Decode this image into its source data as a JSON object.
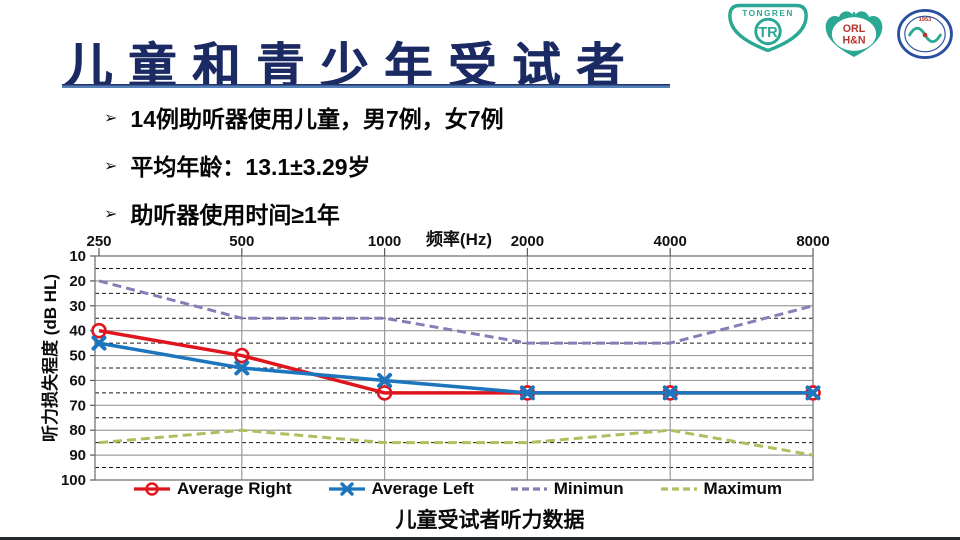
{
  "slide": {
    "title": "儿童和青少年受试者",
    "bullet_marker": "➢",
    "bullets": [
      "14例助听器使用儿童，男7例，女7例",
      "平均年龄：13.1±3.29岁",
      "助听器使用时间≥1年"
    ],
    "caption": "儿童受试者听力数据"
  },
  "logos": {
    "tongren_text": "TONGREN",
    "tongren_monogram": "TR",
    "orl_line1": "ORL",
    "orl_line2": "H&N",
    "seal_year": "1953"
  },
  "colors": {
    "title_navy": "#1b2a63",
    "underline_blue": "#557fb8",
    "logo_teal": "#2aa893",
    "logo_red": "#b5342c",
    "seal_blue": "#2a4f9e",
    "grid_major": "#9b9b9b",
    "grid_minor": "#1a1a1a",
    "frame": "#7f7f7f"
  },
  "chart_data": {
    "type": "line",
    "title": "儿童受试者听力数据",
    "x_axis_label": "频率(Hz)",
    "x_axis_position": "top",
    "y_axis_label": "听力损失程度 (dB HL)",
    "y_inverted": true,
    "y_min": 10,
    "y_max": 100,
    "y_step_major": 10,
    "y_step_minor": 5,
    "grid": "major-solid minor-dashed",
    "legend_position": "bottom",
    "categories": [
      250,
      500,
      1000,
      2000,
      4000,
      8000
    ],
    "series": [
      {
        "name": "Average Right",
        "color": "#e0161f",
        "style": "solid",
        "marker": "circle",
        "values": [
          40,
          50,
          65,
          65,
          65,
          65
        ]
      },
      {
        "name": "Average Left",
        "color": "#1c75bd",
        "style": "solid",
        "marker": "x",
        "values": [
          45,
          55,
          60,
          65,
          65,
          65
        ]
      },
      {
        "name": "Minimun",
        "color": "#8b7cb6",
        "style": "dashed",
        "marker": "none",
        "values": [
          20,
          35,
          35,
          45,
          45,
          30
        ]
      },
      {
        "name": "Maximum",
        "color": "#abc05f",
        "style": "dashed",
        "marker": "none",
        "values": [
          85,
          80,
          85,
          85,
          80,
          90
        ]
      }
    ]
  }
}
